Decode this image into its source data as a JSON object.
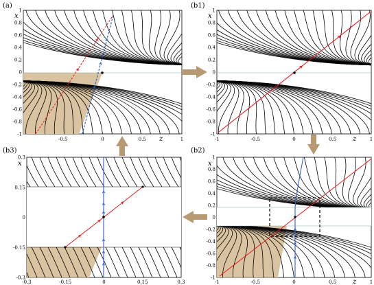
{
  "figure": {
    "colors": {
      "trajectory": "#000000",
      "highlight_red": "#e31a1c",
      "highlight_blue": "#2f5fd0",
      "shaded_region": "#d9c3a1",
      "arrow_fill": "#b79a72"
    },
    "panels": [
      {
        "id": "a",
        "label": "(a)",
        "xlabel": "z",
        "ylabel": "x",
        "xticks": [
          "-0.5",
          "0",
          "0.5",
          "1"
        ],
        "yticks": [
          "1",
          "0.8",
          "0.6",
          "0.4",
          "0.2",
          "0",
          "-0.2",
          "-0.4",
          "-0.6",
          "-0.8",
          "-1"
        ],
        "xlim": [
          -1,
          1
        ],
        "ylim": [
          -1,
          1
        ]
      },
      {
        "id": "b1",
        "label": "(b1)",
        "xlabel": "z",
        "ylabel": "x",
        "xticks": [
          "-1",
          "-0.5",
          "0",
          "0.5",
          "1"
        ],
        "yticks": [
          "1",
          "0.8",
          "0.6",
          "0.4",
          "0.2",
          "0",
          "-0.2",
          "-0.4",
          "-0.6",
          "-0.8",
          "-1"
        ],
        "xlim": [
          -1,
          1
        ],
        "ylim": [
          -1,
          1
        ]
      },
      {
        "id": "b2",
        "label": "(b2)",
        "xlabel": "z",
        "ylabel": "x",
        "xticks": [
          "-1",
          "-0.5",
          "0",
          "0.5",
          "1"
        ],
        "yticks": [
          "1",
          "0.8",
          "0.6",
          "0.4",
          "0.2",
          "0",
          "-0.2",
          "-0.4",
          "-0.6",
          "-0.8",
          "-1"
        ],
        "xlim": [
          -1,
          1
        ],
        "ylim": [
          -1,
          1
        ]
      },
      {
        "id": "b3",
        "label": "(b3)",
        "xlabel": "z",
        "ylabel": "x",
        "xticks": [
          "-0.3",
          "-0.15",
          "0",
          "0.15",
          "0.3"
        ],
        "yticks": [
          "0.3",
          "0.15",
          "0",
          "-0.15",
          "-0.3"
        ],
        "xlim": [
          -0.3,
          0.3
        ],
        "ylim": [
          -0.3,
          0.3
        ]
      }
    ]
  }
}
